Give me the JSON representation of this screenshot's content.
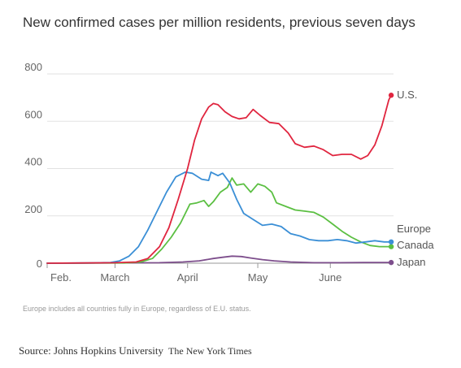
{
  "chart_data": {
    "type": "line",
    "title": "New confirmed cases per million residents, previous seven days",
    "note": "Europe includes all countries fully in Europe, regardless of E.U. status.",
    "source": "Source: Johns Hopkins University",
    "publisher": "The New York Times",
    "xlabel": "",
    "ylabel": "",
    "ylim": [
      0,
      800
    ],
    "yticks": [
      0,
      200,
      400,
      600,
      800
    ],
    "xlim": [
      "2020-02-01",
      "2020-06-28"
    ],
    "xticks": [
      {
        "label": "Feb.",
        "date": "2020-02-01"
      },
      {
        "label": "March",
        "date": "2020-03-01"
      },
      {
        "label": "April",
        "date": "2020-04-01"
      },
      {
        "label": "May",
        "date": "2020-05-01"
      },
      {
        "label": "June",
        "date": "2020-06-01"
      }
    ],
    "grid": true,
    "legend": "end-of-line labels",
    "series": [
      {
        "name": "U.S.",
        "color": "#e0253f",
        "end_marker": true,
        "points": [
          [
            "2020-02-01",
            0
          ],
          [
            "2020-03-01",
            2
          ],
          [
            "2020-03-10",
            5
          ],
          [
            "2020-03-15",
            20
          ],
          [
            "2020-03-20",
            70
          ],
          [
            "2020-03-24",
            150
          ],
          [
            "2020-03-28",
            270
          ],
          [
            "2020-04-01",
            400
          ],
          [
            "2020-04-04",
            520
          ],
          [
            "2020-04-07",
            610
          ],
          [
            "2020-04-10",
            660
          ],
          [
            "2020-04-12",
            675
          ],
          [
            "2020-04-14",
            670
          ],
          [
            "2020-04-17",
            640
          ],
          [
            "2020-04-20",
            620
          ],
          [
            "2020-04-23",
            610
          ],
          [
            "2020-04-26",
            615
          ],
          [
            "2020-04-29",
            650
          ],
          [
            "2020-05-02",
            625
          ],
          [
            "2020-05-06",
            595
          ],
          [
            "2020-05-10",
            590
          ],
          [
            "2020-05-14",
            550
          ],
          [
            "2020-05-17",
            505
          ],
          [
            "2020-05-21",
            490
          ],
          [
            "2020-05-25",
            495
          ],
          [
            "2020-05-29",
            480
          ],
          [
            "2020-06-02",
            455
          ],
          [
            "2020-06-06",
            460
          ],
          [
            "2020-06-10",
            460
          ],
          [
            "2020-06-14",
            440
          ],
          [
            "2020-06-17",
            455
          ],
          [
            "2020-06-20",
            500
          ],
          [
            "2020-06-23",
            580
          ],
          [
            "2020-06-26",
            690
          ],
          [
            "2020-06-27",
            710
          ]
        ]
      },
      {
        "name": "Europe",
        "color": "#3b8fd6",
        "end_marker": true,
        "points": [
          [
            "2020-02-01",
            0
          ],
          [
            "2020-02-20",
            1
          ],
          [
            "2020-02-28",
            3
          ],
          [
            "2020-03-03",
            10
          ],
          [
            "2020-03-07",
            30
          ],
          [
            "2020-03-11",
            70
          ],
          [
            "2020-03-15",
            140
          ],
          [
            "2020-03-19",
            220
          ],
          [
            "2020-03-23",
            300
          ],
          [
            "2020-03-27",
            365
          ],
          [
            "2020-03-31",
            385
          ],
          [
            "2020-04-03",
            380
          ],
          [
            "2020-04-07",
            355
          ],
          [
            "2020-04-10",
            350
          ],
          [
            "2020-04-11",
            385
          ],
          [
            "2020-04-14",
            370
          ],
          [
            "2020-04-16",
            380
          ],
          [
            "2020-04-19",
            340
          ],
          [
            "2020-04-22",
            270
          ],
          [
            "2020-04-25",
            210
          ],
          [
            "2020-04-29",
            185
          ],
          [
            "2020-05-03",
            160
          ],
          [
            "2020-05-07",
            165
          ],
          [
            "2020-05-11",
            155
          ],
          [
            "2020-05-15",
            125
          ],
          [
            "2020-05-19",
            115
          ],
          [
            "2020-05-23",
            100
          ],
          [
            "2020-05-27",
            95
          ],
          [
            "2020-05-31",
            95
          ],
          [
            "2020-06-04",
            100
          ],
          [
            "2020-06-08",
            95
          ],
          [
            "2020-06-12",
            85
          ],
          [
            "2020-06-16",
            90
          ],
          [
            "2020-06-20",
            95
          ],
          [
            "2020-06-24",
            90
          ],
          [
            "2020-06-27",
            90
          ]
        ]
      },
      {
        "name": "Canada",
        "color": "#5bbf42",
        "end_marker": true,
        "points": [
          [
            "2020-02-01",
            0
          ],
          [
            "2020-03-05",
            1
          ],
          [
            "2020-03-12",
            5
          ],
          [
            "2020-03-17",
            20
          ],
          [
            "2020-03-21",
            60
          ],
          [
            "2020-03-25",
            110
          ],
          [
            "2020-03-29",
            170
          ],
          [
            "2020-04-02",
            250
          ],
          [
            "2020-04-05",
            255
          ],
          [
            "2020-04-08",
            265
          ],
          [
            "2020-04-10",
            240
          ],
          [
            "2020-04-12",
            260
          ],
          [
            "2020-04-15",
            300
          ],
          [
            "2020-04-18",
            320
          ],
          [
            "2020-04-20",
            360
          ],
          [
            "2020-04-22",
            330
          ],
          [
            "2020-04-25",
            335
          ],
          [
            "2020-04-28",
            300
          ],
          [
            "2020-05-01",
            335
          ],
          [
            "2020-05-04",
            325
          ],
          [
            "2020-05-07",
            300
          ],
          [
            "2020-05-09",
            255
          ],
          [
            "2020-05-13",
            240
          ],
          [
            "2020-05-17",
            225
          ],
          [
            "2020-05-21",
            220
          ],
          [
            "2020-05-25",
            215
          ],
          [
            "2020-05-29",
            195
          ],
          [
            "2020-06-02",
            165
          ],
          [
            "2020-06-06",
            135
          ],
          [
            "2020-06-10",
            110
          ],
          [
            "2020-06-14",
            90
          ],
          [
            "2020-06-18",
            75
          ],
          [
            "2020-06-22",
            70
          ],
          [
            "2020-06-27",
            70
          ]
        ]
      },
      {
        "name": "Japan",
        "color": "#7d4e8c",
        "end_marker": true,
        "points": [
          [
            "2020-02-01",
            0
          ],
          [
            "2020-03-20",
            2
          ],
          [
            "2020-03-30",
            5
          ],
          [
            "2020-04-06",
            10
          ],
          [
            "2020-04-12",
            20
          ],
          [
            "2020-04-16",
            25
          ],
          [
            "2020-04-20",
            30
          ],
          [
            "2020-04-24",
            28
          ],
          [
            "2020-04-28",
            22
          ],
          [
            "2020-05-03",
            15
          ],
          [
            "2020-05-08",
            10
          ],
          [
            "2020-05-15",
            5
          ],
          [
            "2020-05-25",
            2
          ],
          [
            "2020-06-05",
            2
          ],
          [
            "2020-06-15",
            3
          ],
          [
            "2020-06-27",
            3
          ]
        ]
      }
    ]
  }
}
